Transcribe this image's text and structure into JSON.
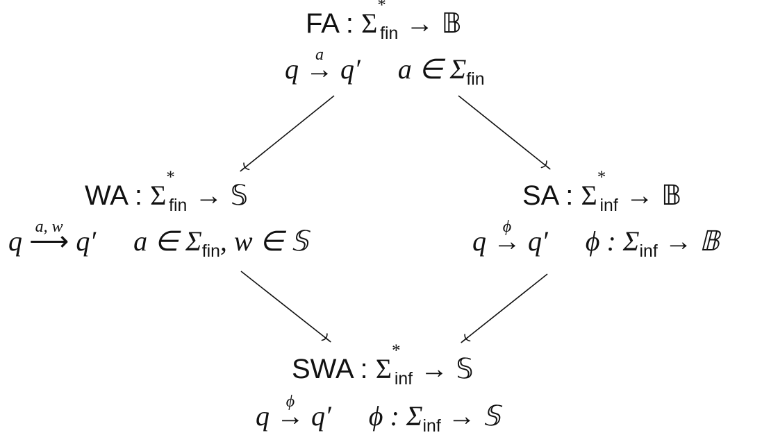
{
  "nodes": {
    "fa": {
      "name": "FA",
      "colon": ":",
      "sigma": "Σ",
      "sup": "*",
      "sub": "fin",
      "to": "→",
      "codomain": "𝔹",
      "rule": {
        "q": "q",
        "arrow": "→",
        "label": "a",
        "q2": "q′",
        "cond": "a ∈ Σ",
        "cond_sub": "fin",
        "cond_tail": ""
      }
    },
    "wa": {
      "name": "WA",
      "colon": ":",
      "sigma": "Σ",
      "sup": "*",
      "sub": "fin",
      "to": "→",
      "codomain": "𝕊",
      "rule": {
        "q": "q",
        "arrow": "⟶",
        "label": "a, w",
        "q2": "q′",
        "cond": "a ∈ Σ",
        "cond_sub": "fin",
        "cond_tail": ", w ∈ 𝕊"
      }
    },
    "sa": {
      "name": "SA",
      "colon": ":",
      "sigma": "Σ",
      "sup": "*",
      "sub": "inf",
      "to": "→",
      "codomain": "𝔹",
      "rule": {
        "q": "q",
        "arrow": "→",
        "label": "ϕ",
        "q2": "q′",
        "cond": "ϕ : Σ",
        "cond_sub": "inf",
        "cond_tail": " → 𝔹"
      }
    },
    "swa": {
      "name": "SWA",
      "colon": ":",
      "sigma": "Σ",
      "sup": "*",
      "sub": "inf",
      "to": "→",
      "codomain": "𝕊",
      "rule": {
        "q": "q",
        "arrow": "→",
        "label": "ϕ",
        "q2": "q′",
        "cond": "ϕ : Σ",
        "cond_sub": "inf",
        "cond_tail": " → 𝕊"
      }
    }
  },
  "edges": [
    {
      "from": "FA",
      "to": "WA"
    },
    {
      "from": "FA",
      "to": "SA"
    },
    {
      "from": "WA",
      "to": "SWA"
    },
    {
      "from": "SA",
      "to": "SWA"
    }
  ],
  "colors": {
    "ink": "#111111",
    "background": "#ffffff"
  }
}
